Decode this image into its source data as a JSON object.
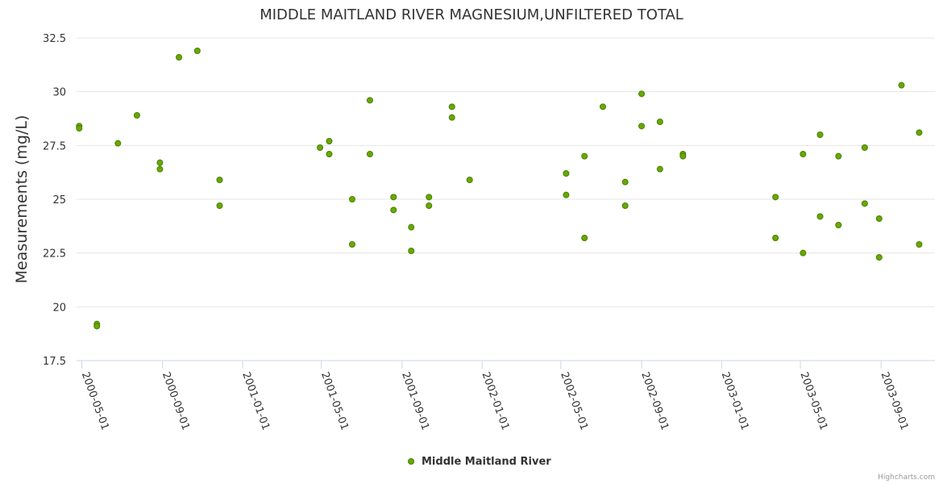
{
  "chart_data": {
    "type": "scatter",
    "title": "MIDDLE MAITLAND RIVER MAGNESIUM,UNFILTERED TOTAL",
    "xlabel": "",
    "ylabel": "Measurements (mg/L)",
    "ylim": [
      17.5,
      32.5
    ],
    "yticks": [
      "17.5",
      "20",
      "22.5",
      "25",
      "27.5",
      "30",
      "32.5"
    ],
    "xlim": [
      "2000-04-23",
      "2003-11-22"
    ],
    "xticks": [
      {
        "date": "2000-05-01",
        "label": "2000-05-01"
      },
      {
        "date": "2000-09-01",
        "label": "2000-09-01"
      },
      {
        "date": "2001-01-01",
        "label": "2001-01-01"
      },
      {
        "date": "2001-05-01",
        "label": "2001-05-01"
      },
      {
        "date": "2001-09-01",
        "label": "2001-09-01"
      },
      {
        "date": "2002-01-01",
        "label": "2002-01-01"
      },
      {
        "date": "2002-05-01",
        "label": "2002-05-01"
      },
      {
        "date": "2002-09-01",
        "label": "2002-09-01"
      },
      {
        "date": "2003-01-01",
        "label": "2003-01-01"
      },
      {
        "date": "2003-05-01",
        "label": "2003-05-01"
      },
      {
        "date": "2003-09-01",
        "label": "2003-09-01"
      }
    ],
    "grid": "horizontal",
    "legend_position": "bottom-center",
    "series": [
      {
        "name": "Middle Maitland River",
        "color": "#66aa00",
        "border_color": "#4a7d00",
        "points": [
          [
            "2000-04-27",
            28.4
          ],
          [
            "2000-04-27",
            28.3
          ],
          [
            "2000-05-24",
            19.2
          ],
          [
            "2000-05-24",
            19.1
          ],
          [
            "2000-06-25",
            27.6
          ],
          [
            "2000-07-24",
            28.9
          ],
          [
            "2000-08-28",
            26.7
          ],
          [
            "2000-08-28",
            26.4
          ],
          [
            "2000-09-26",
            31.6
          ],
          [
            "2000-10-24",
            31.9
          ],
          [
            "2000-11-27",
            25.9
          ],
          [
            "2000-11-27",
            24.7
          ],
          [
            "2001-04-29",
            27.4
          ],
          [
            "2001-05-13",
            27.7
          ],
          [
            "2001-05-13",
            27.1
          ],
          [
            "2001-06-17",
            25.0
          ],
          [
            "2001-06-17",
            22.9
          ],
          [
            "2001-07-14",
            29.6
          ],
          [
            "2001-07-14",
            27.1
          ],
          [
            "2001-08-19",
            25.1
          ],
          [
            "2001-08-19",
            24.5
          ],
          [
            "2001-09-15",
            23.7
          ],
          [
            "2001-09-15",
            22.6
          ],
          [
            "2001-10-12",
            25.1
          ],
          [
            "2001-10-12",
            24.7
          ],
          [
            "2001-11-16",
            29.3
          ],
          [
            "2001-11-16",
            28.8
          ],
          [
            "2001-12-13",
            25.9
          ],
          [
            "2002-05-09",
            26.2
          ],
          [
            "2002-05-09",
            25.2
          ],
          [
            "2002-06-06",
            27.0
          ],
          [
            "2002-06-06",
            23.2
          ],
          [
            "2002-07-04",
            29.3
          ],
          [
            "2002-08-07",
            25.8
          ],
          [
            "2002-08-07",
            24.7
          ],
          [
            "2002-09-01",
            29.9
          ],
          [
            "2002-09-01",
            28.4
          ],
          [
            "2002-09-29",
            28.6
          ],
          [
            "2002-09-29",
            26.4
          ],
          [
            "2002-11-03",
            27.1
          ],
          [
            "2002-11-03",
            27.0
          ],
          [
            "2003-03-24",
            25.1
          ],
          [
            "2003-03-24",
            23.2
          ],
          [
            "2003-05-05",
            27.1
          ],
          [
            "2003-05-05",
            22.5
          ],
          [
            "2003-05-31",
            28.0
          ],
          [
            "2003-05-31",
            24.2
          ],
          [
            "2003-06-28",
            27.0
          ],
          [
            "2003-06-28",
            23.8
          ],
          [
            "2003-08-07",
            27.4
          ],
          [
            "2003-08-07",
            24.8
          ],
          [
            "2003-08-29",
            24.1
          ],
          [
            "2003-08-29",
            22.3
          ],
          [
            "2003-10-02",
            30.3
          ],
          [
            "2003-10-29",
            28.1
          ],
          [
            "2003-10-29",
            22.9
          ]
        ]
      }
    ],
    "credits": "Highcharts.com"
  }
}
